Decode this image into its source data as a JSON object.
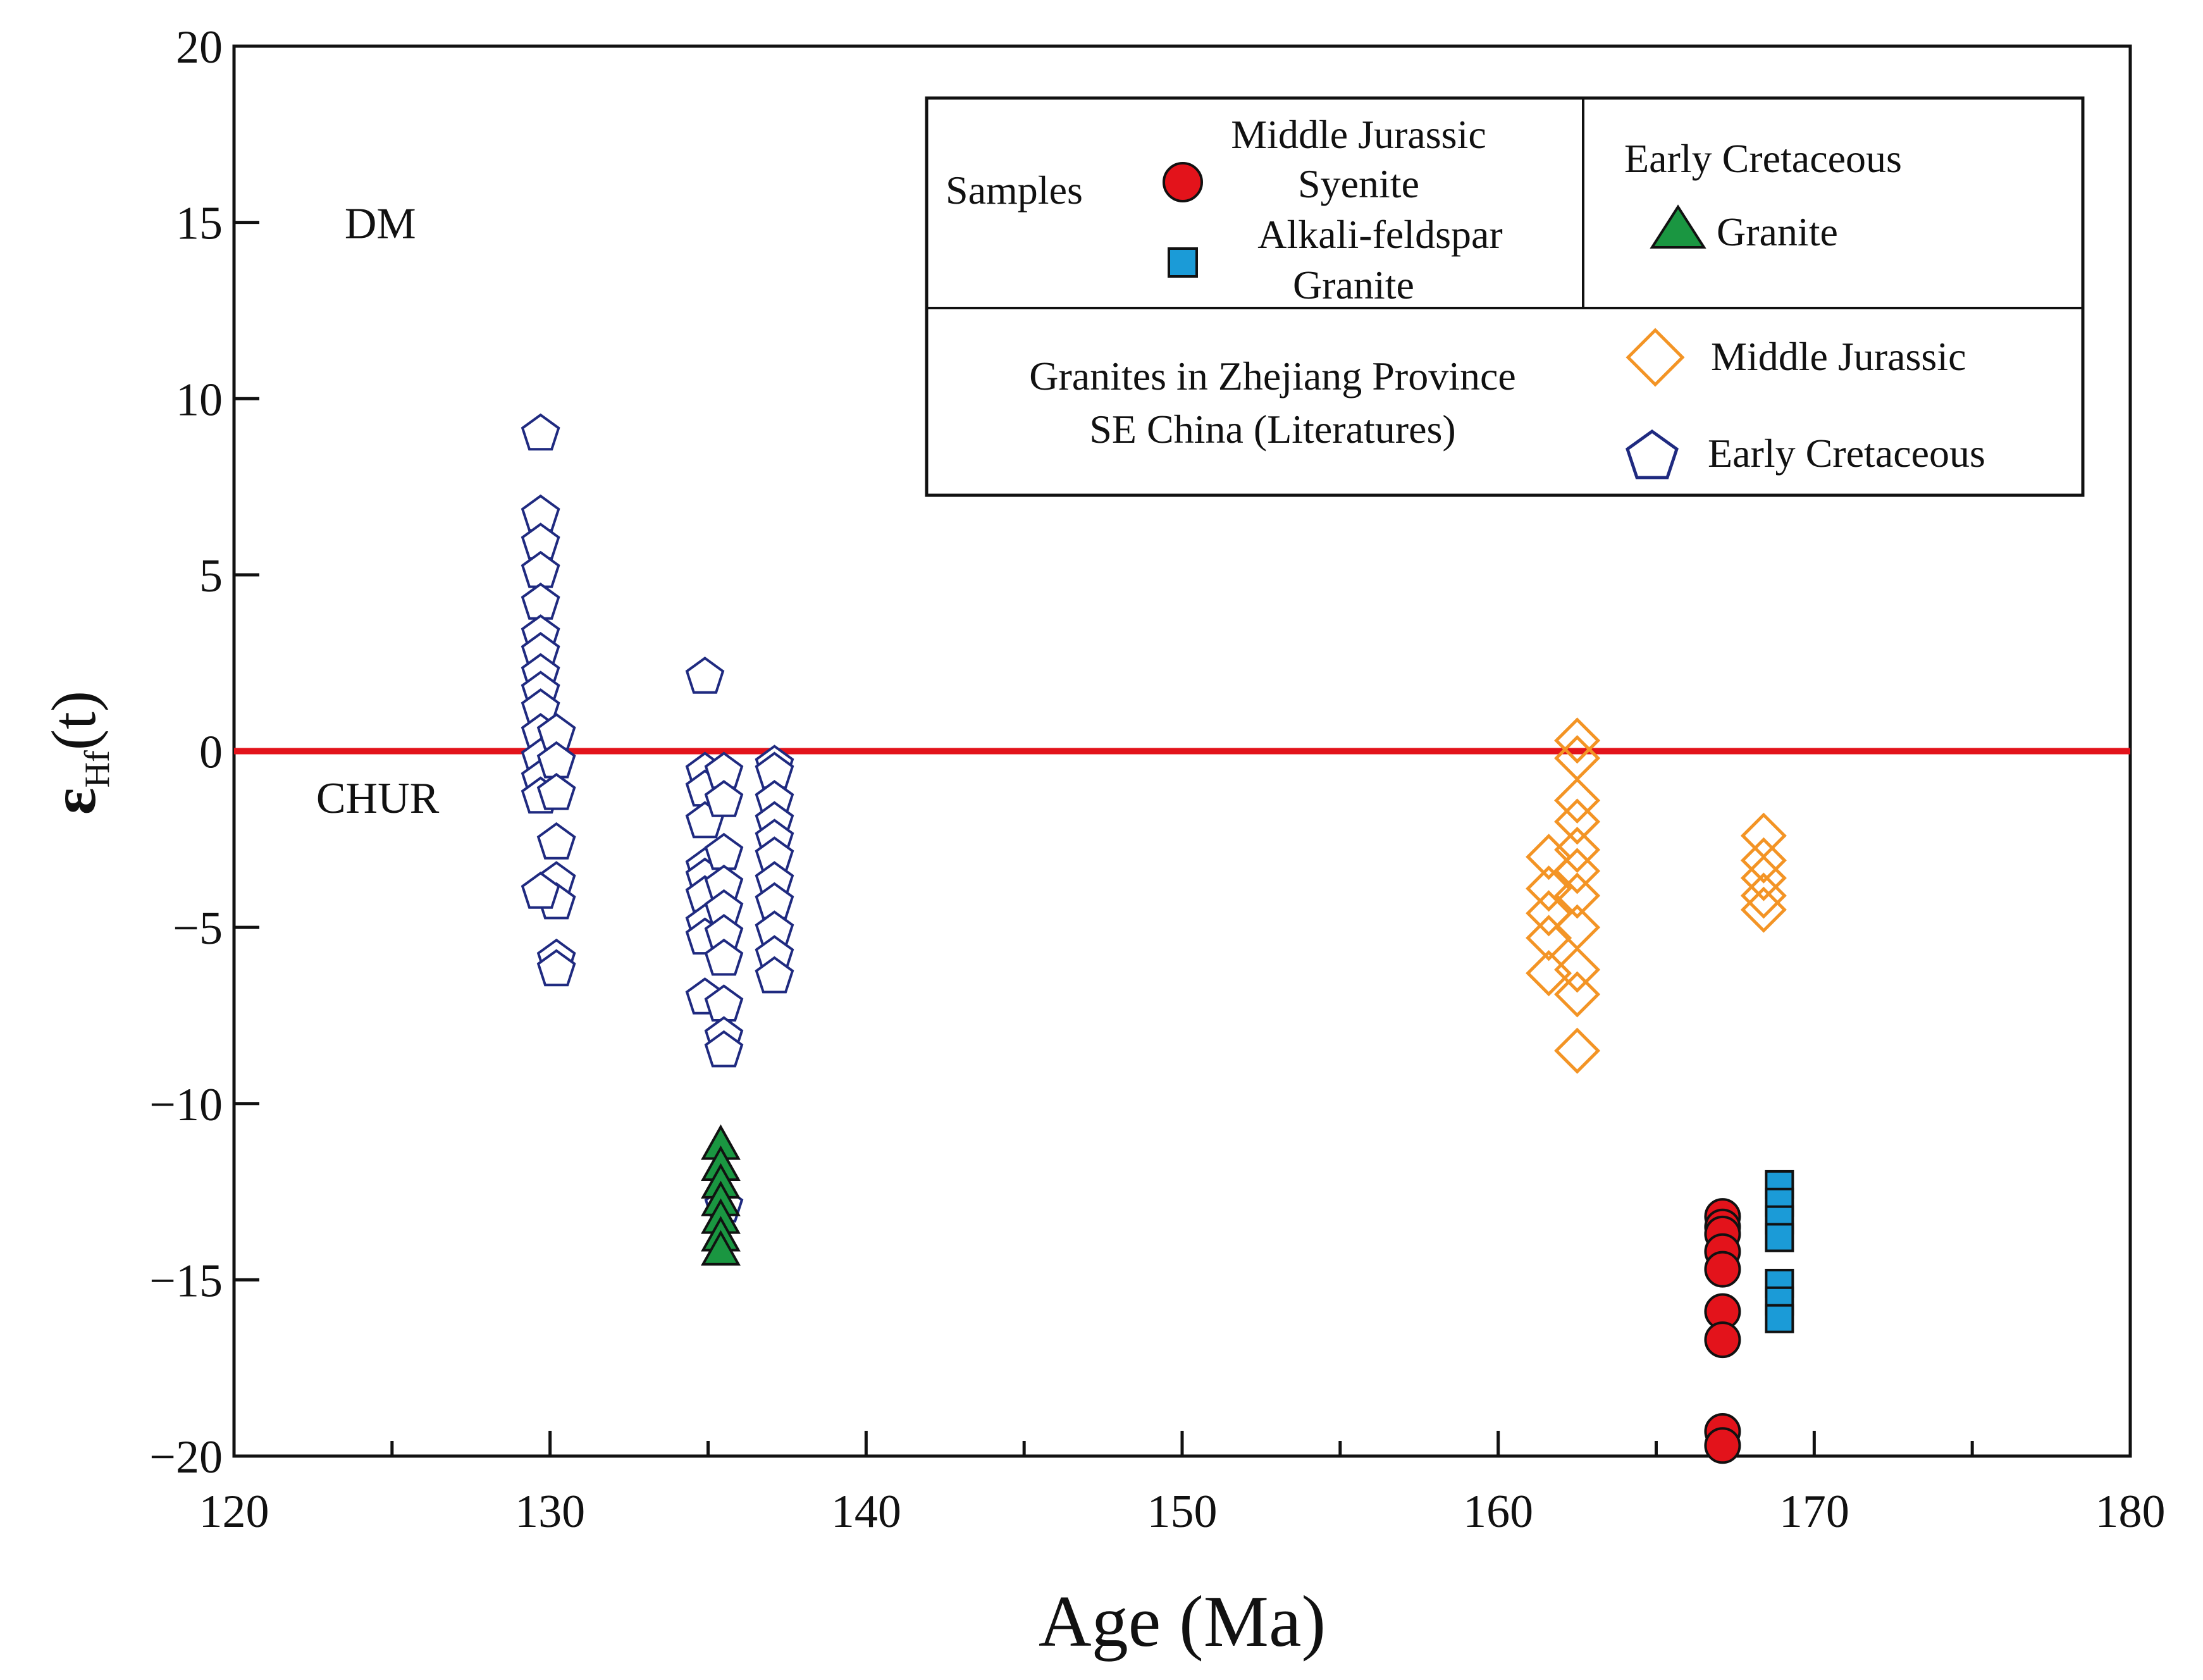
{
  "chart_data": {
    "type": "scatter",
    "xlabel": "Age (Ma)",
    "ylabel": {
      "main": "ε",
      "sub": "Hf",
      "suffix": "(t)"
    },
    "xlim": [
      120,
      180
    ],
    "ylim": [
      -20,
      20
    ],
    "xticks": [
      120,
      130,
      140,
      150,
      160,
      170,
      180
    ],
    "yticks": [
      20,
      15,
      10,
      5,
      0,
      -5,
      -10,
      -15,
      -20
    ],
    "ytick_labels": [
      "20",
      "15",
      "10",
      "5",
      "0",
      "−5",
      "−10",
      "−15",
      "−20"
    ],
    "reference_line": {
      "label": "CHUR",
      "y": 0,
      "color": "#e3131b"
    },
    "region_labels": [
      {
        "text": "DM",
        "x": 125,
        "y": 15
      },
      {
        "text": "CHUR",
        "x": 124,
        "y": -1.3
      }
    ],
    "legend": {
      "samples_label": "Samples",
      "mj_title": "Middle Jurassic",
      "syenite": "Syenite",
      "afg_line1": "Alkali-feldspar",
      "afg_line2": "Granite",
      "ec_title": "Early Cretaceous",
      "ec_granite": "Granite",
      "lit_line1": "Granites in Zhejiang Province",
      "lit_line2": "SE China (Literatures)",
      "lit_mj": "Middle Jurassic",
      "lit_ec": "Early Cretaceous"
    },
    "series": [
      {
        "name": "Syenite (Middle Jurassic)",
        "marker": "circle",
        "color": "#e3131b",
        "points": [
          [
            167.1,
            -13.2
          ],
          [
            167.1,
            -13.5
          ],
          [
            167.1,
            -13.7
          ],
          [
            167.1,
            -14.2
          ],
          [
            167.1,
            -14.7
          ],
          [
            167.1,
            -15.9
          ],
          [
            167.1,
            -16.7
          ],
          [
            167.1,
            -19.3
          ],
          [
            167.1,
            -19.7
          ]
        ]
      },
      {
        "name": "Alkali-feldspar Granite (Middle Jurassic)",
        "marker": "square",
        "color": "#1b9bd7",
        "points": [
          [
            168.9,
            -12.3
          ],
          [
            168.9,
            -12.8
          ],
          [
            168.9,
            -13.3
          ],
          [
            168.9,
            -13.8
          ],
          [
            168.9,
            -15.1
          ],
          [
            168.9,
            -15.6
          ],
          [
            168.9,
            -16.1
          ]
        ]
      },
      {
        "name": "Granite (Early Cretaceous)",
        "marker": "triangle",
        "color": "#1a9641",
        "points": [
          [
            135.4,
            -11.2
          ],
          [
            135.4,
            -11.8
          ],
          [
            135.4,
            -12.3
          ],
          [
            135.4,
            -12.8
          ],
          [
            135.4,
            -13.3
          ],
          [
            135.4,
            -13.8
          ],
          [
            135.4,
            -14.2
          ]
        ]
      },
      {
        "name": "Middle Jurassic (Literatures)",
        "marker": "diamond",
        "color": "#f39425",
        "points": [
          [
            161.6,
            -3.0
          ],
          [
            161.6,
            -3.9
          ],
          [
            161.6,
            -4.6
          ],
          [
            161.6,
            -5.3
          ],
          [
            161.6,
            -6.3
          ],
          [
            162.5,
            0.3
          ],
          [
            162.5,
            -0.2
          ],
          [
            162.5,
            -1.4
          ],
          [
            162.5,
            -2.0
          ],
          [
            162.5,
            -2.8
          ],
          [
            162.5,
            -3.4
          ],
          [
            162.5,
            -4.1
          ],
          [
            162.5,
            -5.0
          ],
          [
            162.5,
            -6.2
          ],
          [
            162.5,
            -6.9
          ],
          [
            162.5,
            -8.5
          ],
          [
            168.4,
            -2.4
          ],
          [
            168.4,
            -3.1
          ],
          [
            168.4,
            -3.6
          ],
          [
            168.4,
            -4.1
          ],
          [
            168.4,
            -4.5
          ]
        ]
      },
      {
        "name": "Early Cretaceous (Literatures)",
        "marker": "pentagon",
        "color": "#1f2a80",
        "points": [
          [
            129.7,
            9.0
          ],
          [
            129.7,
            6.7
          ],
          [
            129.7,
            5.9
          ],
          [
            129.7,
            5.1
          ],
          [
            129.7,
            4.2
          ],
          [
            129.7,
            3.3
          ],
          [
            129.7,
            2.8
          ],
          [
            129.7,
            2.2
          ],
          [
            129.7,
            1.7
          ],
          [
            129.7,
            1.2
          ],
          [
            129.7,
            0.5
          ],
          [
            129.7,
            -0.2
          ],
          [
            129.7,
            -0.8
          ],
          [
            129.7,
            -1.3
          ],
          [
            130.2,
            0.5
          ],
          [
            130.2,
            -0.3
          ],
          [
            130.2,
            -1.2
          ],
          [
            130.2,
            -2.6
          ],
          [
            130.2,
            -3.7
          ],
          [
            130.2,
            -4.3
          ],
          [
            130.2,
            -5.9
          ],
          [
            130.2,
            -6.2
          ],
          [
            129.7,
            -4.0
          ],
          [
            134.9,
            2.1
          ],
          [
            134.9,
            -0.6
          ],
          [
            134.9,
            -1.1
          ],
          [
            134.9,
            -2.0
          ],
          [
            134.9,
            -3.3
          ],
          [
            134.9,
            -3.6
          ],
          [
            134.9,
            -4.1
          ],
          [
            134.9,
            -4.9
          ],
          [
            134.9,
            -5.3
          ],
          [
            134.9,
            -7.0
          ],
          [
            135.5,
            -0.6
          ],
          [
            135.5,
            -1.4
          ],
          [
            135.5,
            -2.9
          ],
          [
            135.5,
            -3.8
          ],
          [
            135.5,
            -4.5
          ],
          [
            135.5,
            -5.2
          ],
          [
            135.5,
            -5.9
          ],
          [
            135.5,
            -7.2
          ],
          [
            135.5,
            -8.1
          ],
          [
            135.5,
            -8.5
          ],
          [
            135.5,
            -12.9
          ],
          [
            137.1,
            -0.4
          ],
          [
            137.1,
            -0.6
          ],
          [
            137.1,
            -1.4
          ],
          [
            137.1,
            -2.0
          ],
          [
            137.1,
            -2.5
          ],
          [
            137.1,
            -3.0
          ],
          [
            137.1,
            -3.7
          ],
          [
            137.1,
            -4.3
          ],
          [
            137.1,
            -5.1
          ],
          [
            137.1,
            -5.8
          ],
          [
            137.1,
            -6.4
          ]
        ]
      }
    ]
  }
}
